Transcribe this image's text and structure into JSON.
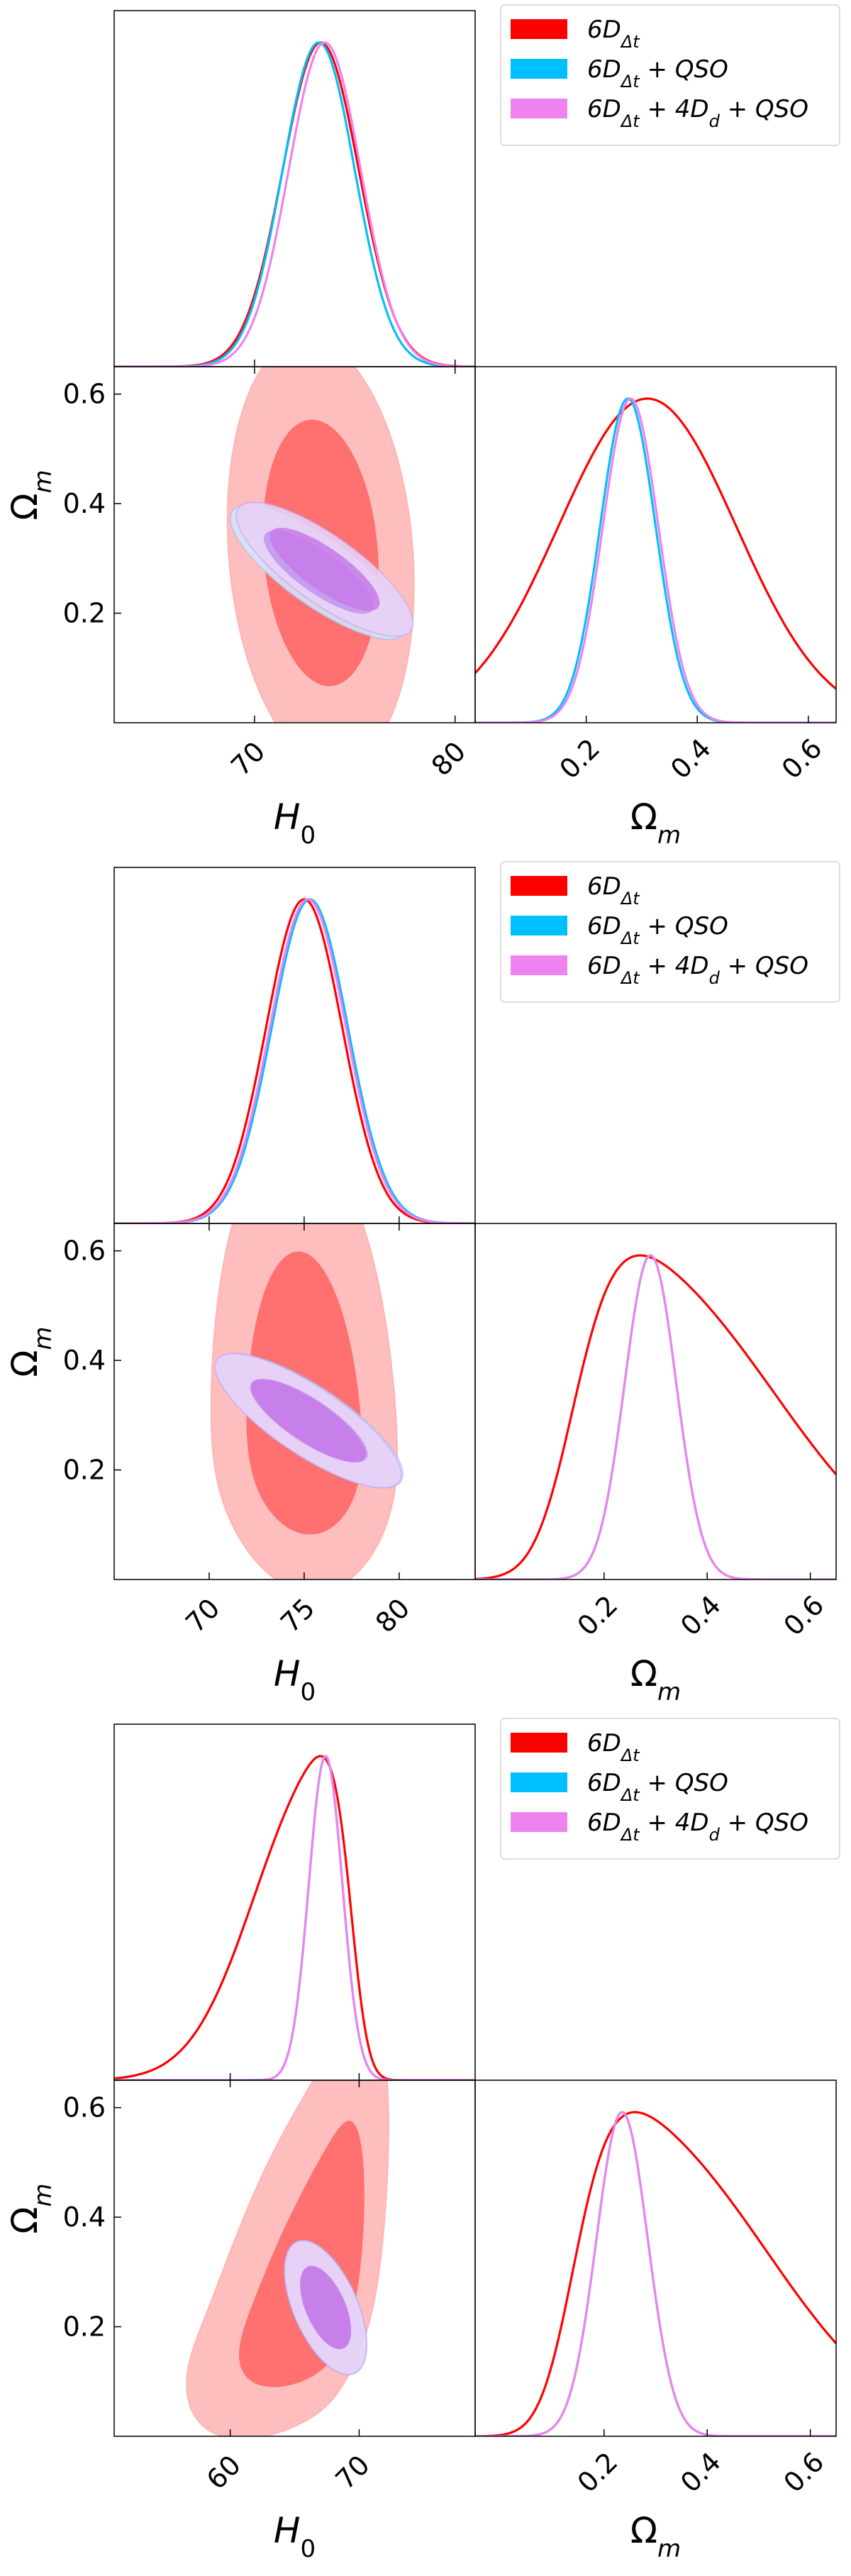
{
  "chart_data": [
    {
      "type": "corner",
      "title": "",
      "legend": [
        "6D_Δt",
        "6D_Δt + QSO",
        "6D_Δt + 4D_d + QSO"
      ],
      "legend_location": "top-right",
      "x_param": "H0",
      "y_param": "Ωm",
      "h0_xlim": [
        63,
        81
      ],
      "h0_ticks": [
        70,
        80
      ],
      "om_ylim": [
        0.0,
        0.65
      ],
      "om_ticks": [
        0.2,
        0.4,
        0.6
      ],
      "om_xlim": [
        0.0,
        0.65
      ],
      "om_xticks": [
        0.2,
        0.4,
        0.6
      ],
      "series": [
        {
          "name": "6D_Δt",
          "color": "#ff0000",
          "h0_mean": 73.3,
          "h0_sigma": 1.9,
          "h0_skew": 0.0,
          "om_mean": 0.31,
          "om_sigma": 0.16,
          "om_skew": 0.0,
          "corr": -0.15
        },
        {
          "name": "6D_Δt + QSO",
          "color": "#00bfff",
          "h0_mean": 73.2,
          "h0_sigma": 1.8,
          "h0_skew": 0.0,
          "om_mean": 0.275,
          "om_sigma": 0.05,
          "om_skew": 0.0,
          "corr": -0.8
        },
        {
          "name": "6D_Δt + 4D_d + QSO",
          "color": "#ee82ee",
          "h0_mean": 73.5,
          "h0_sigma": 1.8,
          "h0_skew": 0.0,
          "om_mean": 0.28,
          "om_sigma": 0.05,
          "om_skew": 0.0,
          "corr": -0.8
        }
      ]
    },
    {
      "type": "corner",
      "title": "",
      "legend": [
        "6D_Δt",
        "6D_Δt + QSO",
        "6D_Δt + 4D_d + QSO"
      ],
      "legend_location": "top-right",
      "x_param": "H0",
      "y_param": "Ωm",
      "h0_xlim": [
        65,
        84
      ],
      "h0_ticks": [
        70,
        75,
        80
      ],
      "om_ylim": [
        0.0,
        0.65
      ],
      "om_ticks": [
        0.2,
        0.4,
        0.6
      ],
      "om_xlim": [
        -0.05,
        0.65
      ],
      "om_xticks": [
        0.2,
        0.4,
        0.6
      ],
      "series": [
        {
          "name": "6D_Δt",
          "color": "#ff0000",
          "h0_mean": 75.0,
          "h0_sigma": 2.0,
          "h0_skew": 0.0,
          "om_mean": 0.27,
          "om_sigma": 0.17,
          "om_skew": 0.5,
          "corr": -0.1
        },
        {
          "name": "6D_Δt + QSO",
          "color": "#00bfff",
          "h0_mean": 75.3,
          "h0_sigma": 2.0,
          "h0_skew": 0.0,
          "om_mean": 0.29,
          "om_sigma": 0.05,
          "om_skew": 0.0,
          "corr": -0.8
        },
        {
          "name": "6D_Δt + 4D_d + QSO",
          "color": "#ee82ee",
          "h0_mean": 75.2,
          "h0_sigma": 2.0,
          "h0_skew": 0.0,
          "om_mean": 0.29,
          "om_sigma": 0.05,
          "om_skew": 0.0,
          "corr": -0.8
        }
      ]
    },
    {
      "type": "corner",
      "title": "",
      "legend": [
        "6D_Δt",
        "6D_Δt + QSO",
        "6D_Δt + 4D_d + QSO"
      ],
      "legend_location": "top-right",
      "x_param": "H0",
      "y_param": "Ωm",
      "h0_xlim": [
        51,
        79
      ],
      "h0_ticks": [
        60,
        70
      ],
      "om_ylim": [
        0.0,
        0.65
      ],
      "om_ticks": [
        0.2,
        0.4,
        0.6
      ],
      "om_xlim": [
        -0.05,
        0.65
      ],
      "om_xticks": [
        0.2,
        0.4,
        0.6
      ],
      "series": [
        {
          "name": "6D_Δt",
          "color": "#ff0000",
          "h0_mean": 67.0,
          "h0_sigma": 3.2,
          "h0_skew": -0.55,
          "om_mean": 0.26,
          "om_sigma": 0.16,
          "om_skew": 0.55,
          "corr": 0.6
        },
        {
          "name": "6D_Δt + QSO",
          "color": "#00bfff",
          "h0_mean": 67.4,
          "h0_sigma": 1.3,
          "h0_skew": 0.0,
          "om_mean": 0.235,
          "om_sigma": 0.05,
          "om_skew": 0.0,
          "corr": -0.55
        },
        {
          "name": "6D_Δt + 4D_d + QSO",
          "color": "#ee82ee",
          "h0_mean": 67.4,
          "h0_sigma": 1.3,
          "h0_skew": 0.0,
          "om_mean": 0.235,
          "om_sigma": 0.05,
          "om_skew": 0.0,
          "corr": -0.55
        }
      ]
    }
  ]
}
